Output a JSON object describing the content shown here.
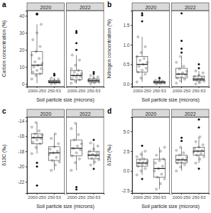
{
  "chart_data": [
    {
      "type": "box",
      "title": "a",
      "x_label": "Soil particle size (microns)",
      "y_label": "Carbon concentration (%)",
      "categories": [
        "2000-250",
        "250-53"
      ],
      "ylim": [
        -1.5,
        43
      ],
      "yticks": [
        0,
        10,
        20,
        30,
        40
      ],
      "series": [
        {
          "name": "2020",
          "boxes": [
            {
              "min": 0.5,
              "q1": 6,
              "median": 11,
              "q3": 19,
              "max": 35
            },
            {
              "min": 0,
              "q1": 0.7,
              "median": 1.2,
              "q3": 2,
              "max": 3.5
            }
          ],
          "points": [
            [
              3,
              5,
              6,
              7,
              8,
              9,
              10,
              11,
              12,
              13,
              15,
              17,
              19,
              22,
              26,
              30,
              35
            ],
            [
              0.2,
              0.5,
              0.8,
              1,
              1.1,
              1.3,
              1.5,
              1.8,
              2,
              2.3,
              2.8,
              3.4
            ]
          ],
          "outliers": [
            [
              41,
              41.2,
              40.8
            ],
            [
              5,
              6
            ]
          ]
        },
        {
          "name": "2022",
          "boxes": [
            {
              "min": 0.3,
              "q1": 2.5,
              "median": 5,
              "q3": 8,
              "max": 17
            },
            {
              "min": 0.3,
              "q1": 1.2,
              "median": 2,
              "q3": 3,
              "max": 5
            }
          ],
          "points": [
            [
              0.5,
              1.5,
              2.5,
              3,
              4,
              4.5,
              5,
              5.5,
              6,
              7,
              8,
              9,
              11,
              14,
              17
            ],
            [
              0.3,
              0.8,
              1.2,
              1.5,
              1.8,
              2,
              2.2,
              2.6,
              3,
              3.5,
              4.2,
              5
            ]
          ],
          "outliers": [
            [
              20,
              24,
              30,
              31
            ],
            [
              6,
              7
            ]
          ]
        }
      ]
    },
    {
      "type": "box",
      "title": "b",
      "x_label": "Soil particle size (microns)",
      "y_label": "Nitrogen concentration (%)",
      "categories": [
        "2000-250",
        "250-53"
      ],
      "ylim": [
        -0.07,
        1.87
      ],
      "yticks": [
        {
          "value": 0,
          "label": "0.0"
        },
        {
          "value": 0.5,
          "label": "0.5"
        },
        {
          "value": 1,
          "label": "1.0"
        },
        {
          "value": 1.5,
          "label": "1.5"
        }
      ],
      "series": [
        {
          "name": "2020",
          "boxes": [
            {
              "min": 0.05,
              "q1": 0.3,
              "median": 0.5,
              "q3": 0.7,
              "max": 1.2
            },
            {
              "min": 0,
              "q1": 0.02,
              "median": 0.04,
              "q3": 0.07,
              "max": 0.12
            }
          ],
          "points": [
            [
              0.05,
              0.15,
              0.25,
              0.3,
              0.35,
              0.4,
              0.45,
              0.5,
              0.55,
              0.6,
              0.65,
              0.7,
              0.8,
              0.95,
              1.2
            ],
            [
              0,
              0.01,
              0.02,
              0.03,
              0.04,
              0.05,
              0.06,
              0.07,
              0.09,
              0.12
            ]
          ],
          "outliers": [
            [
              1.6,
              1.75,
              1.8
            ],
            [
              0.15
            ]
          ]
        },
        {
          "name": "2022",
          "boxes": [
            {
              "min": 0.02,
              "q1": 0.15,
              "median": 0.25,
              "q3": 0.4,
              "max": 0.7
            },
            {
              "min": 0,
              "q1": 0.08,
              "median": 0.12,
              "q3": 0.2,
              "max": 0.33
            }
          ],
          "points": [
            [
              0.02,
              0.08,
              0.12,
              0.15,
              0.18,
              0.22,
              0.25,
              0.28,
              0.32,
              0.38,
              0.45,
              0.55,
              0.7
            ],
            [
              0,
              0.04,
              0.07,
              0.09,
              0.11,
              0.12,
              0.14,
              0.16,
              0.19,
              0.22,
              0.28,
              0.33
            ]
          ],
          "outliers": [
            [
              0.8,
              0.9,
              1.1,
              1.8
            ],
            [
              0.4,
              0.5
            ]
          ]
        }
      ]
    },
    {
      "type": "box",
      "title": "c",
      "x_label": "Soil particle size (microns)",
      "y_label": "δ13C (‰)",
      "categories": [
        "2000-250",
        "250-53"
      ],
      "ylim": [
        -23.5,
        -13.5
      ],
      "yticks": [
        -22,
        -20,
        -18,
        -16,
        -14
      ],
      "series": [
        {
          "name": "2020",
          "boxes": [
            {
              "min": -18.3,
              "q1": -17,
              "median": -16.2,
              "q3": -15.7,
              "max": -14.2
            },
            {
              "min": -20.5,
              "q1": -19.2,
              "median": -18.2,
              "q3": -17.4,
              "max": -15.7
            }
          ],
          "points": [
            [
              -18.3,
              -17.5,
              -17,
              -16.8,
              -16.5,
              -16.3,
              -16.2,
              -16,
              -15.9,
              -15.7,
              -15.3,
              -14.8,
              -14.2
            ],
            [
              -20.5,
              -19.8,
              -19.4,
              -19.2,
              -18.8,
              -18.4,
              -18.2,
              -18,
              -17.7,
              -17.4,
              -17,
              -16.3,
              -15.7
            ]
          ],
          "outliers": [
            [
              -19.5,
              -20,
              -22.5
            ],
            []
          ]
        },
        {
          "name": "2022",
          "boxes": [
            {
              "min": -20.5,
              "q1": -18.6,
              "median": -17.6,
              "q3": -16.5,
              "max": -14.3
            },
            {
              "min": -19.8,
              "q1": -19,
              "median": -18.5,
              "q3": -18,
              "max": -16.9
            }
          ],
          "points": [
            [
              -20.5,
              -19.5,
              -19,
              -18.6,
              -18.2,
              -17.8,
              -17.6,
              -17.3,
              -17,
              -16.5,
              -15.8,
              -15,
              -14.3
            ],
            [
              -19.8,
              -19.4,
              -19.1,
              -18.9,
              -18.7,
              -18.5,
              -18.4,
              -18.2,
              -18,
              -17.7,
              -17.3,
              -16.9
            ]
          ],
          "outliers": [
            [
              -22.7,
              -23
            ],
            [
              -16.5,
              -20.3
            ]
          ]
        }
      ]
    },
    {
      "type": "box",
      "title": "d",
      "x_label": "Soil particle size (microns)",
      "y_label": "δ15N (‰)",
      "categories": [
        "2000-250",
        "250-53"
      ],
      "ylim": [
        -2.8,
        6.8
      ],
      "yticks": [
        {
          "value": -2.5,
          "label": "-2.5"
        },
        {
          "value": 0,
          "label": "0.0"
        },
        {
          "value": 2.5,
          "label": "2.5"
        },
        {
          "value": 5,
          "label": "5.0"
        }
      ],
      "series": [
        {
          "name": "2020",
          "boxes": [
            {
              "min": -0.5,
              "q1": 0.6,
              "median": 1,
              "q3": 1.5,
              "max": 2.5
            },
            {
              "min": -2.3,
              "q1": -0.8,
              "median": 0.3,
              "q3": 1.5,
              "max": 3
            }
          ],
          "points": [
            [
              -0.5,
              0,
              0.3,
              0.6,
              0.8,
              0.9,
              1,
              1.1,
              1.2,
              1.4,
              1.5,
              1.8,
              2.1,
              2.5
            ],
            [
              -2.3,
              -1.6,
              -1,
              -0.8,
              -0.4,
              0,
              0.3,
              0.6,
              1,
              1.3,
              1.5,
              2,
              2.5,
              3
            ]
          ],
          "outliers": [
            [
              3.2,
              -1
            ],
            []
          ]
        },
        {
          "name": "2022",
          "boxes": [
            {
              "min": 0,
              "q1": 1,
              "median": 1.4,
              "q3": 2,
              "max": 3
            },
            {
              "min": 1,
              "q1": 2,
              "median": 2.5,
              "q3": 3,
              "max": 4.3
            }
          ],
          "points": [
            [
              0,
              0.5,
              0.8,
              1,
              1.1,
              1.3,
              1.4,
              1.5,
              1.7,
              2,
              2.3,
              2.6,
              3
            ],
            [
              1,
              1.5,
              1.8,
              2,
              2.2,
              2.4,
              2.5,
              2.6,
              2.8,
              3,
              3.3,
              3.7,
              4.3
            ]
          ],
          "outliers": [
            [
              3.8,
              4.2
            ],
            [
              5.5,
              6.5,
              0.3
            ]
          ]
        }
      ]
    }
  ]
}
